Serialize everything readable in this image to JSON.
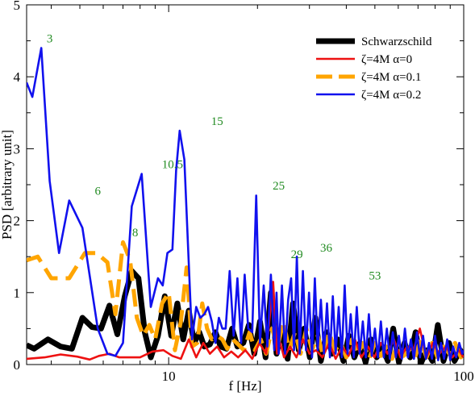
{
  "chart_data": {
    "type": "line",
    "xscale": "log",
    "xlabel": "f [Hz]",
    "ylabel": "PSD [arbitrary unit]",
    "xlim": [
      3.3,
      100
    ],
    "ylim": [
      0,
      5
    ],
    "xticks": [
      {
        "value": 10,
        "label": "10"
      },
      {
        "value": 100,
        "label": "100"
      }
    ],
    "yticks": [
      {
        "value": 0,
        "label": "0"
      },
      {
        "value": 1,
        "label": "1"
      },
      {
        "value": 2,
        "label": "2"
      },
      {
        "value": 3,
        "label": "3"
      },
      {
        "value": 4,
        "label": "4"
      },
      {
        "value": 5,
        "label": "5"
      }
    ],
    "legend_position": "top-right",
    "series": [
      {
        "name": "Schwarzschild",
        "color": "#000000",
        "style": "thick-solid",
        "x": [
          3.3,
          3.5,
          3.9,
          4.3,
          4.7,
          5.1,
          5.5,
          5.9,
          6.3,
          6.7,
          7.1,
          7.5,
          7.9,
          8.3,
          8.7,
          9.2,
          9.7,
          10.2,
          10.7,
          11.2,
          11.7,
          12.2,
          12.7,
          13.2,
          13.8,
          14.4,
          15.0,
          15.7,
          16.4,
          17.1,
          17.9,
          18.7,
          19.5,
          20.4,
          21.3,
          22.2,
          23.2,
          24.2,
          25.3,
          26.4,
          27.6,
          28.8,
          30.1,
          31.4,
          32.8,
          34.3,
          35.8,
          37.4,
          39.1,
          40.8,
          42.6,
          44.5,
          46.5,
          48.5,
          50.7,
          52.9,
          55.3,
          57.7,
          60.3,
          63.0,
          65.8,
          68.7,
          71.7,
          74.9,
          78.3,
          81.7,
          85.4,
          89.2,
          93.1,
          97.3,
          100
        ],
        "y": [
          0.27,
          0.22,
          0.35,
          0.25,
          0.22,
          0.65,
          0.52,
          0.5,
          0.82,
          0.42,
          0.95,
          1.3,
          1.2,
          0.45,
          0.1,
          0.4,
          0.95,
          0.4,
          0.85,
          0.35,
          0.75,
          0.3,
          0.45,
          0.25,
          0.28,
          0.45,
          0.25,
          0.22,
          0.5,
          0.25,
          0.3,
          0.55,
          0.15,
          0.6,
          0.1,
          1.0,
          0.15,
          0.5,
          0.08,
          0.85,
          0.2,
          0.5,
          0.1,
          0.65,
          0.05,
          0.45,
          0.15,
          0.35,
          0.05,
          0.4,
          0.1,
          0.3,
          0.03,
          0.35,
          0.1,
          0.25,
          0.05,
          0.5,
          0.03,
          0.3,
          0.1,
          0.45,
          0.02,
          0.2,
          0.05,
          0.55,
          0.05,
          0.3,
          0.05,
          0.2,
          0.1
        ]
      },
      {
        "name": "ζ=4M  α=0",
        "color": "#ee1111",
        "style": "solid",
        "x": [
          3.3,
          3.8,
          4.3,
          4.9,
          5.4,
          5.8,
          6.3,
          6.8,
          7.3,
          8.0,
          8.8,
          9.6,
          10.3,
          11.0,
          11.7,
          12.4,
          13.1,
          13.8,
          14.6,
          15.4,
          16.3,
          17.2,
          18.2,
          19.2,
          20.3,
          21.4,
          22.6,
          23.3,
          23.9,
          24.6,
          25.8,
          27.1,
          28.5,
          30.0,
          31.6,
          33.2,
          35.0,
          36.8,
          38.7,
          40.7,
          42.8,
          45.0,
          47.4,
          49.8,
          52.4,
          55.1,
          58.0,
          61.0,
          64.2,
          67.5,
          71.0,
          74.7,
          78.6,
          82.7,
          87.0,
          91.5,
          96.2,
          100
        ],
        "y": [
          0.08,
          0.1,
          0.14,
          0.11,
          0.07,
          0.12,
          0.15,
          0.1,
          0.1,
          0.1,
          0.18,
          0.2,
          0.12,
          0.08,
          0.35,
          0.1,
          0.3,
          0.15,
          0.25,
          0.1,
          0.18,
          0.1,
          0.2,
          0.08,
          0.3,
          0.15,
          1.15,
          0.15,
          0.3,
          0.1,
          0.25,
          0.1,
          0.35,
          0.15,
          0.2,
          0.1,
          0.3,
          0.08,
          0.25,
          0.12,
          0.35,
          0.1,
          0.25,
          0.1,
          0.3,
          0.15,
          0.35,
          0.1,
          0.25,
          0.2,
          0.5,
          0.1,
          0.3,
          0.15,
          0.25,
          0.1,
          0.2,
          0.1
        ]
      },
      {
        "name": "ζ=4M  α=0.1",
        "color": "#ffa500",
        "style": "dashed",
        "x": [
          3.3,
          3.6,
          4.0,
          4.6,
          5.2,
          5.7,
          6.2,
          6.6,
          7.0,
          7.4,
          7.8,
          8.2,
          8.6,
          9.0,
          9.5,
          10.0,
          10.5,
          11.0,
          11.5,
          12.0,
          12.5,
          13.0,
          13.5,
          14.0,
          14.6,
          15.2,
          15.8,
          16.5,
          17.2,
          18.0,
          18.8,
          19.6,
          20.5,
          21.4,
          22.4,
          23.4,
          24.5,
          25.6,
          26.8,
          28.0,
          29.3,
          30.6,
          32.0,
          33.4,
          35.0,
          36.6,
          38.3,
          40.0,
          41.8,
          43.7,
          45.7,
          47.8,
          50.0,
          52.3,
          54.7,
          57.2,
          59.8,
          62.5,
          65.4,
          68.4,
          71.5,
          74.8,
          78.2,
          81.8,
          85.5,
          89.4,
          93.5,
          97.8,
          100
        ],
        "y": [
          1.45,
          1.5,
          1.2,
          1.2,
          1.55,
          1.55,
          1.42,
          0.7,
          1.7,
          1.45,
          0.65,
          0.4,
          0.55,
          0.35,
          0.85,
          1.0,
          0.2,
          0.6,
          1.35,
          0.25,
          0.3,
          0.85,
          0.5,
          0.35,
          0.4,
          0.35,
          0.22,
          0.35,
          0.28,
          0.2,
          0.45,
          0.2,
          0.35,
          0.15,
          0.5,
          0.25,
          0.6,
          0.2,
          0.45,
          0.15,
          0.5,
          0.2,
          0.4,
          0.12,
          0.45,
          0.2,
          0.3,
          0.1,
          0.35,
          0.15,
          0.3,
          0.08,
          0.3,
          0.12,
          0.25,
          0.08,
          0.3,
          0.12,
          0.2,
          0.1,
          0.35,
          0.1,
          0.3,
          0.08,
          0.25,
          0.15,
          0.3,
          0.1,
          0.2
        ]
      },
      {
        "name": "ζ=4M  α=0.2",
        "color": "#1111ee",
        "style": "solid",
        "x": [
          3.3,
          3.45,
          3.7,
          3.95,
          4.25,
          4.6,
          5.1,
          5.75,
          6.2,
          6.6,
          7.0,
          7.5,
          8.1,
          8.7,
          9.2,
          9.55,
          9.9,
          10.3,
          10.6,
          10.9,
          11.3,
          11.7,
          12.0,
          12.4,
          12.8,
          13.2,
          13.6,
          14.0,
          14.4,
          14.8,
          15.2,
          15.6,
          16.1,
          16.6,
          17.1,
          17.6,
          18.1,
          18.6,
          19.2,
          19.8,
          20.4,
          21.0,
          21.6,
          22.2,
          22.8,
          23.2,
          23.6,
          24.2,
          24.8,
          25.4,
          26.0,
          26.6,
          27.2,
          27.8,
          28.5,
          29.2,
          29.9,
          30.6,
          31.3,
          32.0,
          32.8,
          33.6,
          34.4,
          35.2,
          36.0,
          36.8,
          37.7,
          38.6,
          39.5,
          40.4,
          41.4,
          42.4,
          43.4,
          44.4,
          45.5,
          46.6,
          47.7,
          48.8,
          50.0,
          51.2,
          52.4,
          53.6,
          54.9,
          56.2,
          57.5,
          58.9,
          60.3,
          61.7,
          63.2,
          64.7,
          66.2,
          67.8,
          69.4,
          71.1,
          72.8,
          74.5,
          76.3,
          78.1,
          80.0,
          81.9,
          83.8,
          85.8,
          87.9,
          90.0,
          92.1,
          94.3,
          96.6,
          98.9,
          100
        ],
        "y": [
          3.92,
          3.72,
          4.4,
          2.55,
          1.55,
          2.28,
          1.9,
          0.5,
          0.15,
          0.12,
          0.3,
          2.2,
          2.65,
          0.8,
          1.2,
          1.1,
          1.55,
          1.6,
          2.7,
          3.25,
          2.85,
          1.4,
          0.35,
          0.8,
          0.65,
          0.7,
          0.8,
          0.6,
          0.3,
          0.65,
          0.5,
          0.5,
          1.3,
          0.4,
          1.2,
          0.3,
          1.25,
          0.5,
          0.45,
          2.35,
          0.3,
          1.1,
          0.25,
          1.25,
          0.2,
          1.0,
          0.15,
          1.1,
          0.15,
          0.9,
          1.2,
          0.2,
          1.5,
          0.15,
          1.3,
          0.2,
          1.0,
          0.1,
          1.2,
          0.2,
          0.9,
          0.15,
          0.85,
          0.1,
          0.95,
          0.15,
          0.8,
          0.1,
          1.1,
          0.15,
          0.7,
          0.1,
          0.8,
          0.15,
          0.6,
          0.1,
          0.7,
          0.12,
          0.5,
          0.1,
          0.6,
          0.1,
          0.5,
          0.08,
          0.45,
          0.1,
          0.4,
          0.08,
          0.5,
          0.1,
          0.35,
          0.08,
          0.45,
          0.1,
          0.4,
          0.08,
          0.3,
          0.08,
          0.4,
          0.06,
          0.3,
          0.08,
          0.35,
          0.06,
          0.25,
          0.1,
          0.3,
          0.15,
          0.2
        ]
      }
    ],
    "annotations": [
      {
        "text": "3",
        "x": 3.95,
        "y": 4.48,
        "color": "#228b22"
      },
      {
        "text": "6",
        "x": 5.75,
        "y": 2.36,
        "color": "#228b22"
      },
      {
        "text": "8",
        "x": 7.7,
        "y": 1.78,
        "color": "#228b22"
      },
      {
        "text": "10.5",
        "x": 10.3,
        "y": 2.73,
        "color": "#228b22"
      },
      {
        "text": "15",
        "x": 14.6,
        "y": 3.33,
        "color": "#228b22"
      },
      {
        "text": "25",
        "x": 23.6,
        "y": 2.43,
        "color": "#228b22"
      },
      {
        "text": "29",
        "x": 27.2,
        "y": 1.48,
        "color": "#228b22"
      },
      {
        "text": "36",
        "x": 34.2,
        "y": 1.57,
        "color": "#228b22"
      },
      {
        "text": "53",
        "x": 50.0,
        "y": 1.18,
        "color": "#228b22"
      }
    ]
  }
}
